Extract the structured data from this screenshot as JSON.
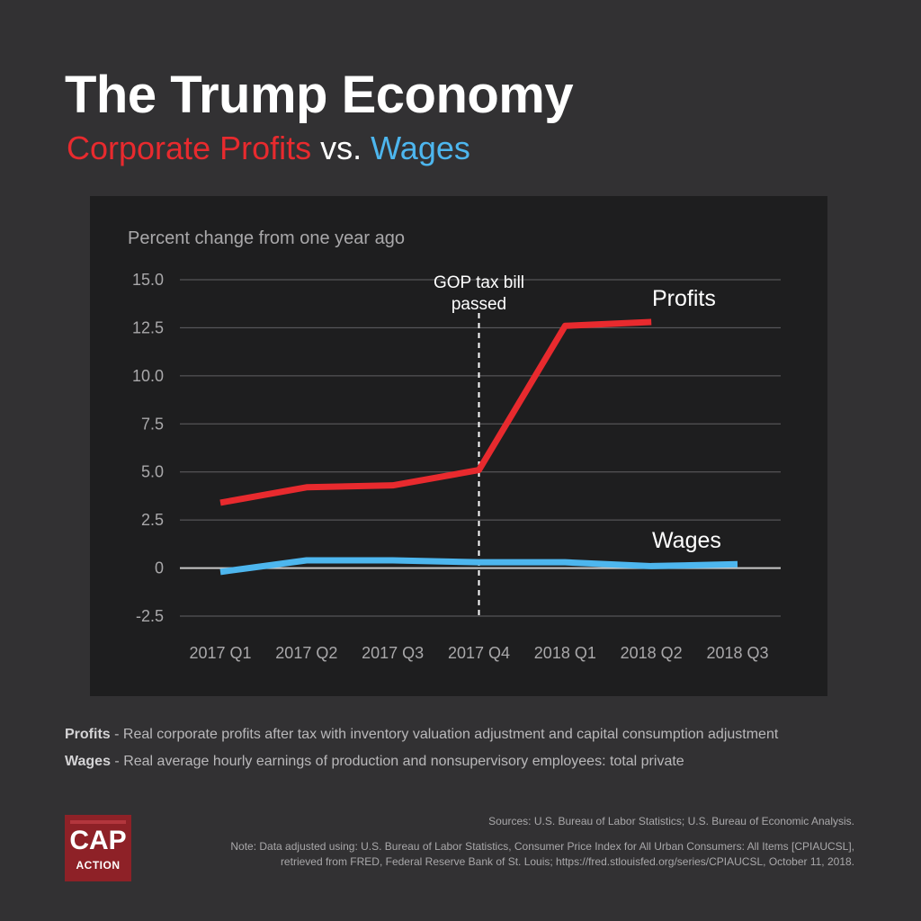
{
  "title": "The Trump Economy",
  "subtitle": {
    "profits": "Corporate Profits",
    "vs": "vs.",
    "wages": "Wages"
  },
  "chart_data": {
    "type": "line",
    "ylabel": "Percent change from one year ago",
    "ylim": [
      -2.5,
      15.0
    ],
    "y_ticks": [
      "15.0",
      "12.5",
      "10.0",
      "7.5",
      "5.0",
      "2.5",
      "0",
      "-2.5"
    ],
    "y_tick_values": [
      15.0,
      12.5,
      10.0,
      7.5,
      5.0,
      2.5,
      0,
      -2.5
    ],
    "categories": [
      "2017 Q1",
      "2017 Q2",
      "2017 Q3",
      "2017 Q4",
      "2018 Q1",
      "2018 Q2",
      "2018 Q3"
    ],
    "grid": true,
    "series": [
      {
        "name": "Profits",
        "color": "#e82a2e",
        "values": [
          3.4,
          4.2,
          4.3,
          5.1,
          12.6,
          12.8,
          null
        ]
      },
      {
        "name": "Wages",
        "color": "#4db6ee",
        "values": [
          -0.2,
          0.4,
          0.4,
          0.3,
          0.3,
          0.1,
          0.2
        ]
      }
    ],
    "annotation": {
      "text_line1": "GOP tax bill",
      "text_line2": "passed",
      "category": "2017 Q4"
    }
  },
  "definitions": {
    "profits_term": "Profits",
    "profits_text": " - Real corporate profits after tax with inventory valuation adjustment and capital consumption adjustment",
    "wages_term": "Wages",
    "wages_text": " - Real average hourly earnings of production and nonsupervisory employees: total private"
  },
  "sources": "Sources: U.S. Bureau of Labor Statistics; U.S. Bureau of Economic Analysis.",
  "note_line1": "Note: Data adjusted using: U.S. Bureau of Labor Statistics, Consumer Price Index for All Urban Consumers: All Items [CPIAUCSL],",
  "note_line2": "retrieved from FRED, Federal Reserve Bank of St. Louis; https://fred.stlouisfed.org/series/CPIAUCSL, October 11, 2018.",
  "logo": {
    "top": "CAP",
    "bottom": "ACTION",
    "color": "#8e2127"
  }
}
